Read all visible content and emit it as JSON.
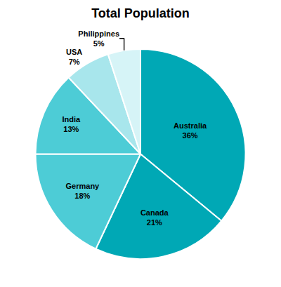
{
  "chart_data": {
    "type": "pie",
    "title": "Total Population",
    "categories": [
      "Australia",
      "Canada",
      "Germany",
      "India",
      "USA",
      "Philippines"
    ],
    "values": [
      36,
      21,
      18,
      13,
      7,
      5
    ],
    "value_labels": [
      "36%",
      "21%",
      "18%",
      "13%",
      "7%",
      "5%"
    ],
    "colors": [
      "#00a8b5",
      "#00a8b5",
      "#4dccd6",
      "#4dccd6",
      "#a8e6ec",
      "#d6f4f7"
    ],
    "data_labels": true
  }
}
